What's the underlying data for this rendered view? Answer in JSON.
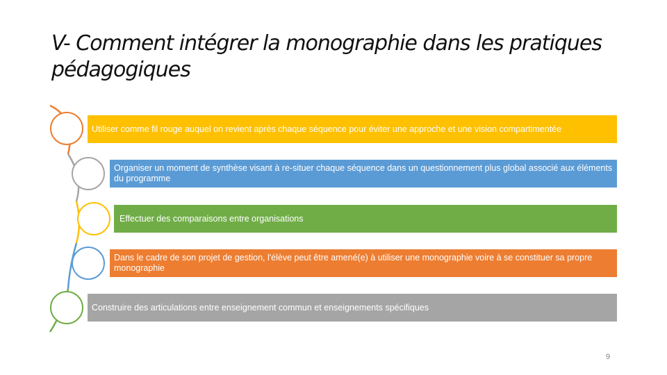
{
  "slide": {
    "title": "V- Comment intégrer la monographie dans les pratiques pédagogiques",
    "page_number": "9"
  },
  "items": [
    {
      "text": "Utiliser comme fil rouge auquel on revient après chaque séquence pour éviter une approche et une vision compartimentée",
      "color": "#FFC000"
    },
    {
      "text": "Organiser un moment de synthèse visant à re-situer chaque séquence dans un questionnement plus global associé aux éléments du programme",
      "color": "#5B9BD5"
    },
    {
      "text": "Effectuer des comparaisons entre organisations",
      "color": "#70AD47"
    },
    {
      "text": "Dans le cadre de son projet de gestion, l'élève peut être amené(e) à utiliser une monographie voire à se constituer sa propre monographie",
      "color": "#ED7D31"
    },
    {
      "text": "Construire des articulations entre enseignement commun et enseignements spécifiques",
      "color": "#A5A5A5"
    }
  ],
  "circle_colors": [
    "#ED7D31",
    "#A5A5A5",
    "#FFC000",
    "#5B9BD5",
    "#70AD47"
  ]
}
